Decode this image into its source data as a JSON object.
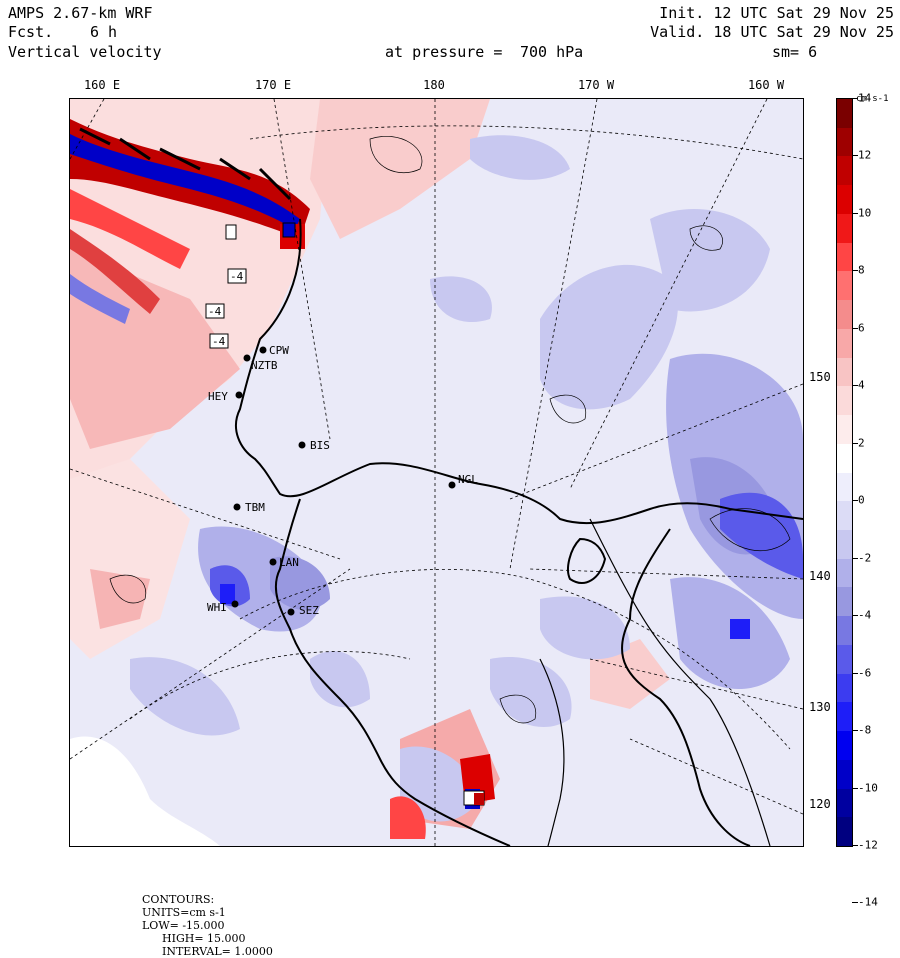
{
  "header": {
    "model": "AMPS 2.67-km WRF",
    "forecast_label": "Fcst.",
    "forecast_value": "6 h",
    "field": "Vertical velocity",
    "init": "Init. 12 UTC Sat 29 Nov 25",
    "valid": "Valid. 18 UTC Sat 29 Nov 25",
    "pressure_label": "at pressure =",
    "pressure_value": "700 hPa",
    "smoothing": "sm= 6"
  },
  "longitude_labels": [
    "160 E",
    "170 E",
    "180",
    "170 W",
    "160 W"
  ],
  "latitude_labels": [
    "150 W",
    "140 W",
    "130 W",
    "120 W"
  ],
  "stations": [
    {
      "id": "CPW"
    },
    {
      "id": "NZTB"
    },
    {
      "id": "HEY"
    },
    {
      "id": "BIS"
    },
    {
      "id": "NGL"
    },
    {
      "id": "TBM"
    },
    {
      "id": "LAN"
    },
    {
      "id": "WHI"
    },
    {
      "id": "SEZ"
    }
  ],
  "max_markers": [
    "-4",
    "-4",
    "-4",
    "-4"
  ],
  "colorbar": {
    "units": "cm s-1",
    "labels": [
      "14",
      "12",
      "10",
      "8",
      "6",
      "4",
      "2",
      "0",
      "-2",
      "-4",
      "-6",
      "-8",
      "-10",
      "-12",
      "-14"
    ],
    "colors": [
      "#7a0000",
      "#9e0000",
      "#c00000",
      "#dc0000",
      "#f01818",
      "#ff4545",
      "#ff7070",
      "#f48c8c",
      "#f8a8a8",
      "#f8c4c4",
      "#fbdada",
      "#fdecec",
      "#ffffff",
      "#eeeefc",
      "#dcdcf6",
      "#c8c8f0",
      "#b0b0ea",
      "#9898e0",
      "#7878e2",
      "#5a5aea",
      "#3c3cf0",
      "#1e1ef8",
      "#0000f0",
      "#0000c8",
      "#0000a0",
      "#000080"
    ]
  },
  "footer": {
    "contours": "CONTOURS:",
    "units": "UNITS=cm s-1",
    "low": "LOW= -15.000",
    "high": "HIGH= 15.000",
    "interval": "INTERVAL= 1.0000"
  }
}
